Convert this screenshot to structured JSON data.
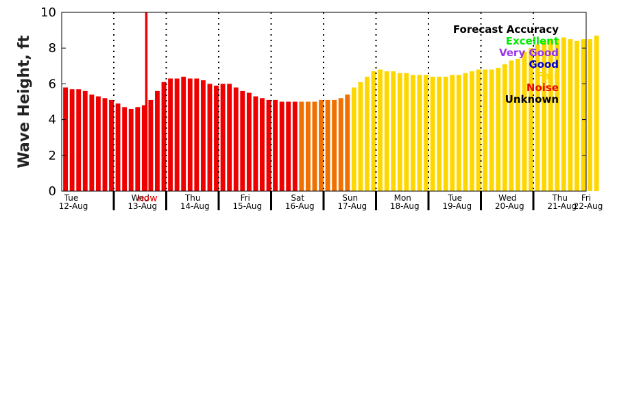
{
  "chart_data": {
    "type": "bar",
    "ylabel": "Wave Height, ft",
    "ylim": [
      0,
      10
    ],
    "yticks": [
      "0",
      "2",
      "4",
      "6",
      "8",
      "10"
    ],
    "grid": false,
    "now_label": "now",
    "now_index": 13,
    "day_labels": [
      {
        "day": "Tue",
        "date": "12-Aug"
      },
      {
        "day": "Wed",
        "date": "13-Aug"
      },
      {
        "day": "Thu",
        "date": "14-Aug"
      },
      {
        "day": "Fri",
        "date": "15-Aug"
      },
      {
        "day": "Sat",
        "date": "16-Aug"
      },
      {
        "day": "Sun",
        "date": "17-Aug"
      },
      {
        "day": "Mon",
        "date": "18-Aug"
      },
      {
        "day": "Tue",
        "date": "19-Aug"
      },
      {
        "day": "Wed",
        "date": "20-Aug"
      },
      {
        "day": "Thu",
        "date": "21-Aug"
      },
      {
        "day": "Fri",
        "date": "22-Aug"
      }
    ],
    "legend": {
      "title": "Forecast Accuracy",
      "placement": "top-right",
      "entries": [
        {
          "label": "Excellent",
          "color": "#00ee00"
        },
        {
          "label": "Very Good",
          "color": "#9933ee"
        },
        {
          "label": "Good",
          "color": "#0000cc"
        },
        {
          "label": "Fair",
          "color": "#ffd700"
        },
        {
          "label": "Noise",
          "color": "#ee0000"
        },
        {
          "label": "Unknown",
          "color": "#000000"
        }
      ]
    },
    "colors": {
      "Noise": "#ee0000",
      "Poor": "#f07000",
      "Fair": "#ffd700"
    },
    "values": [
      5.8,
      5.7,
      5.7,
      5.6,
      5.4,
      5.3,
      5.2,
      5.1,
      4.9,
      4.7,
      4.6,
      4.7,
      4.8,
      5.1,
      5.6,
      6.1,
      6.3,
      6.3,
      6.4,
      6.3,
      6.3,
      6.2,
      6.0,
      5.9,
      6.0,
      6.0,
      5.8,
      5.6,
      5.5,
      5.3,
      5.2,
      5.1,
      5.1,
      5.0,
      5.0,
      5.0,
      5.0,
      5.0,
      5.0,
      5.1,
      5.1,
      5.1,
      5.2,
      5.4,
      5.8,
      6.1,
      6.4,
      6.7,
      6.8,
      6.7,
      6.7,
      6.6,
      6.6,
      6.5,
      6.5,
      6.5,
      6.4,
      6.4,
      6.4,
      6.5,
      6.5,
      6.6,
      6.7,
      6.8,
      6.8,
      6.8,
      6.9,
      7.1,
      7.3,
      7.4,
      7.8,
      8.0,
      8.2,
      8.4,
      8.5,
      8.5,
      8.6,
      8.5,
      8.4,
      8.5,
      8.5,
      8.7
    ],
    "categories": [
      "Noise",
      "Noise",
      "Noise",
      "Noise",
      "Noise",
      "Noise",
      "Noise",
      "Noise",
      "Noise",
      "Noise",
      "Noise",
      "Noise",
      "Noise",
      "Noise",
      "Noise",
      "Noise",
      "Noise",
      "Noise",
      "Noise",
      "Noise",
      "Noise",
      "Noise",
      "Noise",
      "Noise",
      "Noise",
      "Noise",
      "Noise",
      "Noise",
      "Noise",
      "Noise",
      "Noise",
      "Noise",
      "Noise",
      "Noise",
      "Noise",
      "Noise",
      "Poor",
      "Poor",
      "Poor",
      "Poor",
      "Poor",
      "Poor",
      "Poor",
      "Poor",
      "Fair",
      "Fair",
      "Fair",
      "Fair",
      "Fair",
      "Fair",
      "Fair",
      "Fair",
      "Fair",
      "Fair",
      "Fair",
      "Fair",
      "Fair",
      "Fair",
      "Fair",
      "Fair",
      "Fair",
      "Fair",
      "Fair",
      "Fair",
      "Fair",
      "Fair",
      "Fair",
      "Fair",
      "Fair",
      "Fair",
      "Fair",
      "Fair",
      "Fair",
      "Fair",
      "Fair",
      "Fair",
      "Fair",
      "Fair",
      "Fair",
      "Fair",
      "Fair",
      "Fair"
    ]
  }
}
